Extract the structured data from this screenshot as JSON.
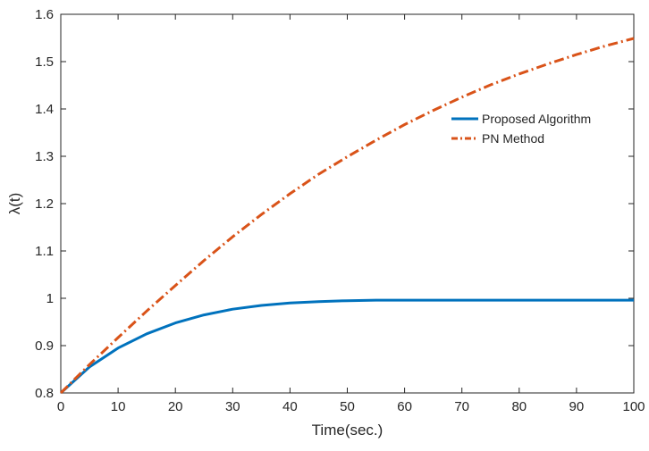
{
  "chart_data": {
    "type": "line",
    "xlabel": "Time(sec.)",
    "ylabel": "λ(t)",
    "xlim": [
      0,
      100
    ],
    "ylim": [
      0.8,
      1.6
    ],
    "x_ticks": [
      0,
      10,
      20,
      30,
      40,
      50,
      60,
      70,
      80,
      90,
      100
    ],
    "y_ticks": [
      0.8,
      0.9,
      1,
      1.1,
      1.2,
      1.3,
      1.4,
      1.5,
      1.6
    ],
    "grid": false,
    "legend_position": "top-right",
    "x": [
      0,
      5,
      10,
      15,
      20,
      25,
      30,
      35,
      40,
      45,
      50,
      55,
      60,
      65,
      70,
      75,
      80,
      85,
      90,
      95,
      100
    ],
    "series": [
      {
        "name": "Proposed Algorithm",
        "color": "#0072BD",
        "line_style": "solid",
        "values": [
          0.8,
          0.855,
          0.895,
          0.925,
          0.948,
          0.965,
          0.977,
          0.985,
          0.99,
          0.993,
          0.995,
          0.996,
          0.996,
          0.996,
          0.996,
          0.996,
          0.996,
          0.996,
          0.996,
          0.996,
          0.996
        ]
      },
      {
        "name": "PN Method",
        "color": "#D95319",
        "line_style": "dash-dot",
        "values": [
          0.8,
          0.86,
          0.917,
          0.973,
          1.027,
          1.08,
          1.13,
          1.177,
          1.221,
          1.262,
          1.299,
          1.334,
          1.367,
          1.397,
          1.425,
          1.451,
          1.474,
          1.495,
          1.515,
          1.533,
          1.549
        ]
      }
    ]
  }
}
